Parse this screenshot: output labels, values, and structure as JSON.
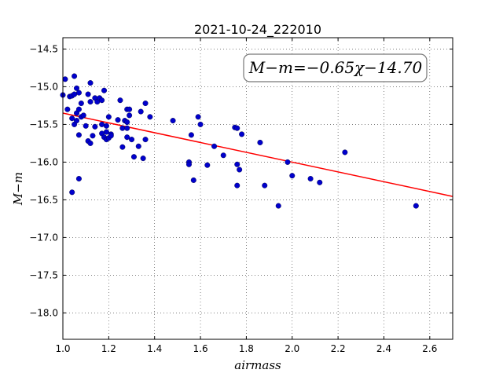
{
  "chart_data": {
    "type": "scatter",
    "title": "2021-10-24_222010",
    "xlabel": "airmass",
    "ylabel": "M−m",
    "xlim": [
      1.0,
      2.7
    ],
    "ylim": [
      -18.35,
      -14.35
    ],
    "y_inverted": true,
    "grid": true,
    "x_ticks": [
      1.0,
      1.2,
      1.4,
      1.6,
      1.8,
      2.0,
      2.2,
      2.4,
      2.6
    ],
    "x_tick_labels": [
      "1.0",
      "1.2",
      "1.4",
      "1.6",
      "1.8",
      "2.0",
      "2.2",
      "2.4",
      "2.6"
    ],
    "y_ticks": [
      -14.5,
      -15.0,
      -15.5,
      -16.0,
      -16.5,
      -17.0,
      -17.5,
      -18.0
    ],
    "y_tick_labels": [
      "−14.5",
      "−15.0",
      "−15.5",
      "−16.0",
      "−16.5",
      "−17.0",
      "−17.5",
      "−18.0"
    ],
    "annotation": "M−m=−0.65χ−14.70",
    "fit": {
      "slope": -0.65,
      "intercept": -14.7,
      "color": "#ff0000"
    },
    "marker_color": "#0000cc",
    "points": [
      [
        1.0,
        -15.11
      ],
      [
        1.01,
        -14.9
      ],
      [
        1.02,
        -15.3
      ],
      [
        1.03,
        -15.13
      ],
      [
        1.04,
        -15.12
      ],
      [
        1.04,
        -16.4
      ],
      [
        1.04,
        -15.42
      ],
      [
        1.05,
        -15.1
      ],
      [
        1.05,
        -14.86
      ],
      [
        1.05,
        -15.5
      ],
      [
        1.06,
        -15.35
      ],
      [
        1.06,
        -15.45
      ],
      [
        1.06,
        -15.02
      ],
      [
        1.07,
        -15.08
      ],
      [
        1.07,
        -15.3
      ],
      [
        1.07,
        -15.64
      ],
      [
        1.07,
        -16.22
      ],
      [
        1.08,
        -15.22
      ],
      [
        1.08,
        -15.4
      ],
      [
        1.09,
        -15.38
      ],
      [
        1.1,
        -15.52
      ],
      [
        1.11,
        -15.1
      ],
      [
        1.11,
        -15.72
      ],
      [
        1.12,
        -15.75
      ],
      [
        1.12,
        -15.2
      ],
      [
        1.12,
        -14.95
      ],
      [
        1.13,
        -15.65
      ],
      [
        1.14,
        -15.15
      ],
      [
        1.14,
        -15.53
      ],
      [
        1.15,
        -15.2
      ],
      [
        1.16,
        -15.15
      ],
      [
        1.17,
        -15.62
      ],
      [
        1.17,
        -15.18
      ],
      [
        1.17,
        -15.5
      ],
      [
        1.18,
        -15.05
      ],
      [
        1.18,
        -15.67
      ],
      [
        1.19,
        -15.52
      ],
      [
        1.19,
        -15.6
      ],
      [
        1.19,
        -15.7
      ],
      [
        1.2,
        -15.68
      ],
      [
        1.2,
        -15.4
      ],
      [
        1.21,
        -15.63
      ],
      [
        1.21,
        -15.65
      ],
      [
        1.24,
        -15.44
      ],
      [
        1.25,
        -15.18
      ],
      [
        1.26,
        -15.55
      ],
      [
        1.26,
        -15.8
      ],
      [
        1.27,
        -15.45
      ],
      [
        1.28,
        -15.67
      ],
      [
        1.28,
        -15.3
      ],
      [
        1.28,
        -15.47
      ],
      [
        1.28,
        -15.55
      ],
      [
        1.29,
        -15.38
      ],
      [
        1.29,
        -15.3
      ],
      [
        1.3,
        -15.7
      ],
      [
        1.31,
        -15.93
      ],
      [
        1.33,
        -15.79
      ],
      [
        1.34,
        -15.33
      ],
      [
        1.35,
        -15.95
      ],
      [
        1.36,
        -15.7
      ],
      [
        1.36,
        -15.22
      ],
      [
        1.38,
        -15.4
      ],
      [
        1.48,
        -15.45
      ],
      [
        1.55,
        -16.0
      ],
      [
        1.55,
        -16.03
      ],
      [
        1.56,
        -15.64
      ],
      [
        1.57,
        -16.24
      ],
      [
        1.59,
        -15.4
      ],
      [
        1.6,
        -15.5
      ],
      [
        1.63,
        -16.04
      ],
      [
        1.66,
        -15.79
      ],
      [
        1.7,
        -15.91
      ],
      [
        1.75,
        -15.54
      ],
      [
        1.76,
        -16.31
      ],
      [
        1.76,
        -16.03
      ],
      [
        1.76,
        -15.55
      ],
      [
        1.77,
        -16.1
      ],
      [
        1.78,
        -15.63
      ],
      [
        1.86,
        -15.74
      ],
      [
        1.88,
        -16.31
      ],
      [
        1.94,
        -16.58
      ],
      [
        1.98,
        -16.0
      ],
      [
        2.0,
        -16.18
      ],
      [
        2.08,
        -16.22
      ],
      [
        2.12,
        -16.27
      ],
      [
        2.23,
        -15.87
      ],
      [
        2.54,
        -16.58
      ]
    ]
  }
}
